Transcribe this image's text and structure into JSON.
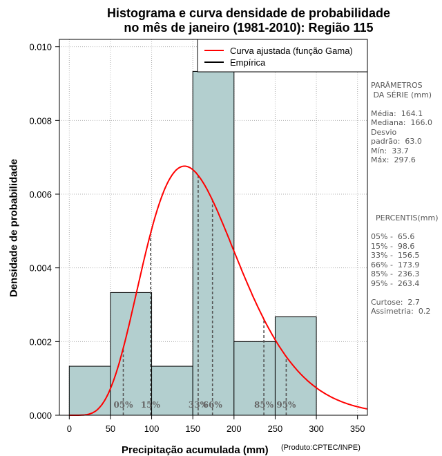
{
  "title_line1": "Histograma e curva densidade de probabilidade",
  "title_line2": "no mês de janeiro (1981-2010): Região 115",
  "credit": "(Produto:CPTEC/INPE)",
  "chart_data": {
    "type": "bar",
    "title": "Histograma e curva densidade de probabilidade no mês de janeiro (1981-2010): Região 115",
    "xlabel": "Precipitação acumulada (mm)",
    "ylabel": "Densidade de probabilidade",
    "xlim": [
      -12,
      362
    ],
    "ylim": [
      0,
      0.0102
    ],
    "x_ticks": [
      0,
      50,
      100,
      150,
      200,
      250,
      300,
      350
    ],
    "y_ticks": [
      0.0,
      0.002,
      0.004,
      0.006,
      0.008,
      0.01
    ],
    "y_tick_labels": [
      "0.000",
      "0.002",
      "0.004",
      "0.006",
      "0.008",
      "0.010"
    ],
    "grid": true,
    "bins": [
      {
        "from": 0,
        "to": 50,
        "density": 0.00133
      },
      {
        "from": 50,
        "to": 100,
        "density": 0.00333
      },
      {
        "from": 100,
        "to": 150,
        "density": 0.00133
      },
      {
        "from": 150,
        "to": 200,
        "density": 0.00933
      },
      {
        "from": 200,
        "to": 250,
        "density": 0.002
      },
      {
        "from": 250,
        "to": 300,
        "density": 0.00267
      }
    ],
    "bar_color": "#b3cfcf",
    "gamma_fit": {
      "mean": 164.1,
      "sd": 63.0,
      "color": "#ff0000"
    },
    "legend": {
      "position": "top-right",
      "entries": [
        {
          "label": "Curva ajustada (função Gama)",
          "color": "#ff0000"
        },
        {
          "label": "Empírica",
          "color": "#000000"
        }
      ]
    },
    "percentile_lines": [
      {
        "label": "05%",
        "value": 65.6
      },
      {
        "label": "15%",
        "value": 98.6
      },
      {
        "label": "33%",
        "value": 156.5
      },
      {
        "label": "66%",
        "value": 173.9
      },
      {
        "label": "85%",
        "value": 236.3
      },
      {
        "label": "95%",
        "value": 263.4
      }
    ]
  },
  "params_text": "PARÂMETROS\n DA SÉRIE (mm)\n\nMédia:  164.1\nMediana:  166.0\nDesvio\npadrão:  63.0\nMín:  33.7\nMáx:  297.6",
  "percentis_text": "  PERCENTIS(mm)\n\n05% -  65.6\n15% -  98.6\n33% -  156.5\n66% -  173.9\n85% -  236.3\n95% -  263.4\n\nCurtose:  2.7\nAssimetria:  0.2"
}
